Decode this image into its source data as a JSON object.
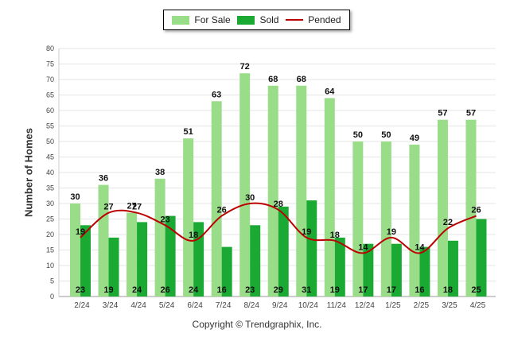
{
  "chart_data": {
    "type": "bar",
    "categories": [
      "2/24",
      "3/24",
      "4/24",
      "5/24",
      "6/24",
      "7/24",
      "8/24",
      "9/24",
      "10/24",
      "11/24",
      "12/24",
      "1/25",
      "2/25",
      "3/25",
      "4/25"
    ],
    "series": [
      {
        "name": "For Sale",
        "type": "bar",
        "color": "#99dd88",
        "values": [
          30,
          36,
          27,
          38,
          51,
          63,
          72,
          68,
          68,
          64,
          50,
          50,
          49,
          57,
          57
        ]
      },
      {
        "name": "Sold",
        "type": "bar",
        "color": "#1aaa33",
        "values": [
          23,
          19,
          24,
          26,
          24,
          16,
          23,
          29,
          31,
          19,
          17,
          17,
          16,
          18,
          25
        ]
      },
      {
        "name": "Pended",
        "type": "line",
        "color": "#bb0000",
        "values": [
          19,
          27,
          27,
          23,
          18,
          26,
          30,
          28,
          19,
          18,
          14,
          19,
          14,
          22,
          26
        ]
      }
    ],
    "ylabel": "Number of Homes",
    "ylim": [
      0,
      80
    ],
    "yticks": [
      0,
      5,
      10,
      15,
      20,
      25,
      30,
      35,
      40,
      45,
      50,
      55,
      60,
      65,
      70,
      75,
      80
    ],
    "grid": true,
    "legend_position": "top-center"
  },
  "legend": {
    "for_sale": "For Sale",
    "sold": "Sold",
    "pended": "Pended"
  },
  "footer": "Copyright © Trendgraphix, Inc."
}
